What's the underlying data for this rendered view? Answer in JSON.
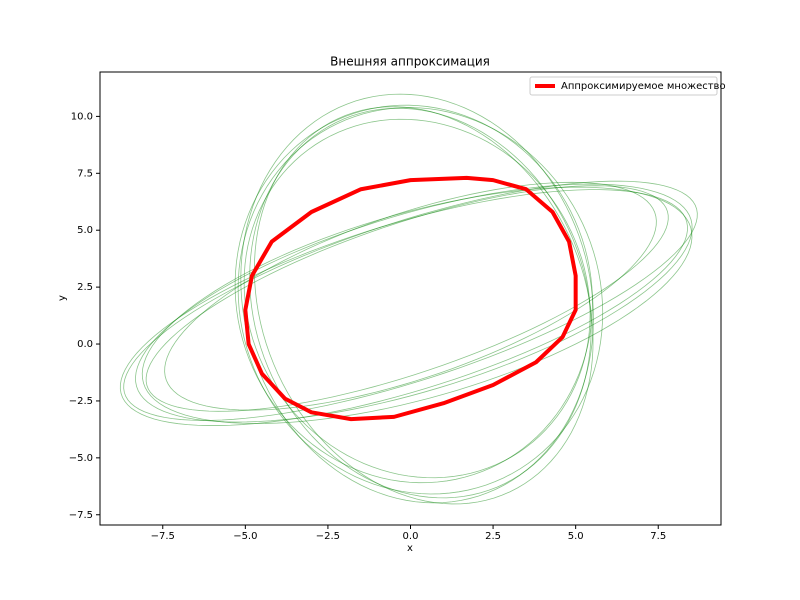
{
  "chart_data": {
    "type": "line",
    "title": "Внешняя аппроксимация",
    "xlabel": "x",
    "ylabel": "y",
    "xlim": [
      -9.4,
      9.4
    ],
    "ylim": [
      -7.95,
      11.95
    ],
    "xticks": [
      {
        "value": -7.5,
        "label": "−7.5"
      },
      {
        "value": -5,
        "label": "−5.0"
      },
      {
        "value": -2.5,
        "label": "−2.5"
      },
      {
        "value": 0,
        "label": "0.0"
      },
      {
        "value": 2.5,
        "label": "2.5"
      },
      {
        "value": 5,
        "label": "5.0"
      },
      {
        "value": 7.5,
        "label": "7.5"
      }
    ],
    "yticks": [
      {
        "value": -7.5,
        "label": "−7.5"
      },
      {
        "value": -5,
        "label": "−5.0"
      },
      {
        "value": -2.5,
        "label": "−2.5"
      },
      {
        "value": 0,
        "label": "0.0"
      },
      {
        "value": 2.5,
        "label": "2.5"
      },
      {
        "value": 5,
        "label": "5.0"
      },
      {
        "value": 7.5,
        "label": "7.5"
      },
      {
        "value": 10,
        "label": "10.0"
      }
    ],
    "legend": "upper right",
    "ellipses": {
      "color": "green",
      "items": [
        {
          "center": [
            0,
            1.9
          ],
          "semi_axes": [
            9.6,
            3.3
          ],
          "angle": 27
        },
        {
          "center": [
            0.1,
            1.8
          ],
          "semi_axes": [
            9.2,
            3.7
          ],
          "angle": 26
        },
        {
          "center": [
            -0.1,
            2.0
          ],
          "semi_axes": [
            8.8,
            3.1
          ],
          "angle": 28
        },
        {
          "center": [
            0.2,
            1.7
          ],
          "semi_axes": [
            9.0,
            3.9
          ],
          "angle": 25
        },
        {
          "center": [
            0,
            2.1
          ],
          "semi_axes": [
            8.3,
            3.4
          ],
          "angle": 29
        },
        {
          "center": [
            -0.2,
            1.6
          ],
          "semi_axes": [
            9.4,
            3.5
          ],
          "angle": 26
        },
        {
          "center": [
            0.2,
            2.0
          ],
          "semi_axes": [
            9.0,
            5.3
          ],
          "angle": 95
        },
        {
          "center": [
            0.3,
            1.8
          ],
          "semi_axes": [
            8.6,
            5.1
          ],
          "angle": 97
        },
        {
          "center": [
            0.1,
            2.2
          ],
          "semi_axes": [
            8.3,
            5.4
          ],
          "angle": 93
        },
        {
          "center": [
            0.4,
            1.7
          ],
          "semi_axes": [
            8.8,
            5.0
          ],
          "angle": 99
        },
        {
          "center": [
            0.2,
            2.0
          ],
          "semi_axes": [
            7.9,
            5.2
          ],
          "angle": 96
        },
        {
          "center": [
            0.3,
            1.9
          ],
          "semi_axes": [
            8.5,
            5.5
          ],
          "angle": 94
        }
      ]
    },
    "series": [
      {
        "name": "Аппроксимируемое множество",
        "color": "red",
        "x": [
          1.7,
          0,
          -1.5,
          -3,
          -4.2,
          -4.8,
          -5.0,
          -4.9,
          -4.5,
          -3.8,
          -3,
          -1.8,
          -0.5,
          1,
          2.5,
          3.8,
          4.6,
          5.0,
          5.0,
          4.8,
          4.3,
          3.5,
          2.5
        ],
        "values": [
          7.3,
          7.2,
          6.8,
          5.8,
          4.5,
          3.0,
          1.5,
          0,
          -1.3,
          -2.4,
          -3.0,
          -3.3,
          -3.2,
          -2.6,
          -1.8,
          -0.8,
          0.3,
          1.5,
          3.0,
          4.5,
          5.8,
          6.8,
          7.2
        ]
      }
    ]
  }
}
